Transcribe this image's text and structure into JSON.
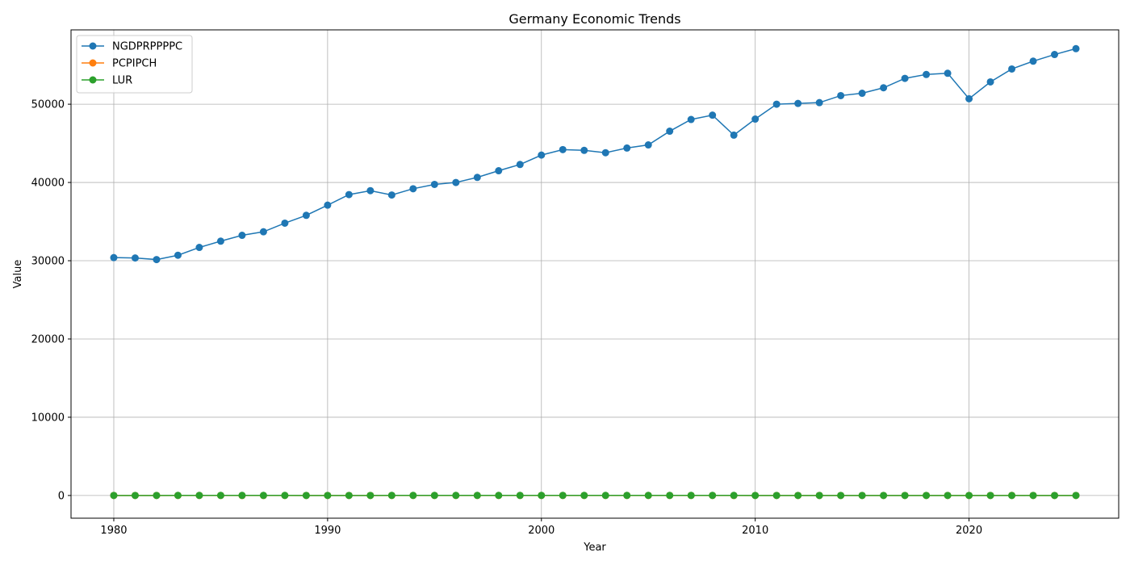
{
  "chart_data": {
    "type": "line",
    "title": "Germany Economic Trends",
    "xlabel": "Year",
    "ylabel": "Value",
    "xlim": [
      1978,
      2027
    ],
    "ylim": [
      -2900,
      59500
    ],
    "xticks": [
      1980,
      1990,
      2000,
      2010,
      2020
    ],
    "yticks": [
      0,
      10000,
      20000,
      30000,
      40000,
      50000
    ],
    "grid": true,
    "legend_position": "top-left",
    "x": [
      1980,
      1981,
      1982,
      1983,
      1984,
      1985,
      1986,
      1987,
      1988,
      1989,
      1990,
      1991,
      1992,
      1993,
      1994,
      1995,
      1996,
      1997,
      1998,
      1999,
      2000,
      2001,
      2002,
      2003,
      2004,
      2005,
      2006,
      2007,
      2008,
      2009,
      2010,
      2011,
      2012,
      2013,
      2014,
      2015,
      2016,
      2017,
      2018,
      2019,
      2020,
      2021,
      2022,
      2023,
      2024,
      2025
    ],
    "series": [
      {
        "name": "NGDPRPPPPC",
        "color": "#1f77b4",
        "marker": "circle",
        "values": [
          30400,
          30350,
          30150,
          30700,
          31700,
          32500,
          33250,
          33700,
          34800,
          35800,
          37100,
          38450,
          38950,
          38400,
          39200,
          39750,
          40000,
          40650,
          41500,
          42300,
          43500,
          44200,
          44100,
          43800,
          44400,
          44800,
          46550,
          48050,
          48600,
          46050,
          48100,
          50000,
          50100,
          50200,
          51100,
          51400,
          52100,
          53300,
          53800,
          53950,
          50700,
          52850,
          54500,
          55500,
          56350,
          57100
        ]
      },
      {
        "name": "PCPIPCH",
        "color": "#ff7f0e",
        "marker": "circle",
        "values": [
          5.4,
          6.3,
          5.3,
          3.3,
          2.4,
          2.1,
          -0.1,
          0.2,
          1.3,
          2.8,
          2.7,
          4.1,
          5.0,
          4.5,
          2.7,
          1.7,
          1.2,
          1.5,
          0.6,
          0.6,
          1.4,
          1.9,
          1.4,
          1.0,
          1.8,
          1.9,
          1.8,
          2.3,
          2.7,
          0.2,
          1.1,
          2.5,
          2.2,
          1.6,
          0.8,
          0.7,
          0.4,
          1.7,
          1.9,
          1.4,
          0.4,
          3.2,
          8.7,
          6.0,
          2.5,
          2.1
        ]
      },
      {
        "name": "LUR",
        "color": "#2ca02c",
        "marker": "circle",
        "values": [
          3.3,
          4.6,
          6.7,
          8.1,
          8.0,
          8.0,
          7.5,
          7.5,
          7.4,
          6.9,
          6.2,
          5.4,
          6.3,
          7.6,
          8.2,
          8.0,
          8.7,
          9.4,
          9.0,
          8.2,
          7.5,
          7.6,
          8.4,
          9.3,
          9.8,
          10.6,
          9.8,
          8.5,
          7.4,
          7.6,
          6.9,
          5.8,
          5.4,
          5.2,
          5.0,
          4.6,
          4.1,
          3.8,
          3.4,
          3.1,
          3.6,
          3.6,
          3.1,
          3.0,
          3.4,
          3.5
        ]
      }
    ]
  }
}
